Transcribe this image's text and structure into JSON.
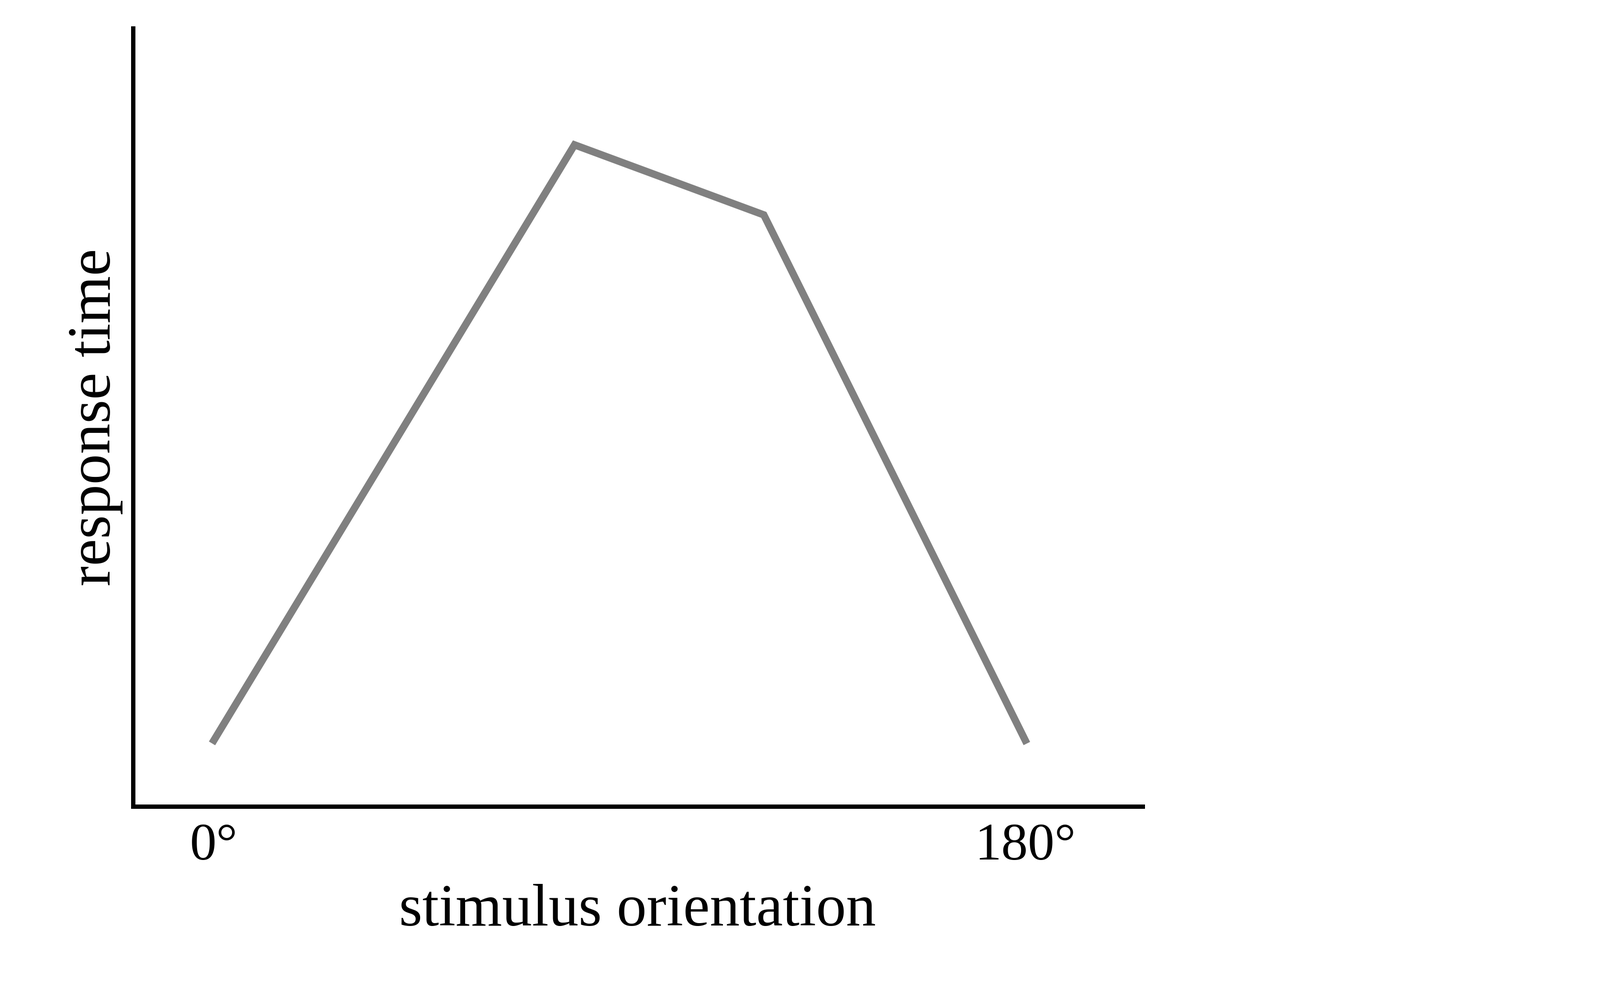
{
  "chart_data": {
    "type": "line",
    "x_label": "stimulus orientation",
    "y_label": "response time",
    "x": [
      0,
      80,
      122,
      180
    ],
    "values": [
      8.5,
      85,
      76,
      8.5
    ],
    "color": "#808080",
    "xlim": [
      -18,
      206
    ],
    "xticks": [
      {
        "value": 0,
        "label": "0°"
      },
      {
        "value": 180,
        "label": "180°"
      }
    ],
    "ylim": [
      0,
      100
    ],
    "tick_labels": "x",
    "grid": false
  }
}
